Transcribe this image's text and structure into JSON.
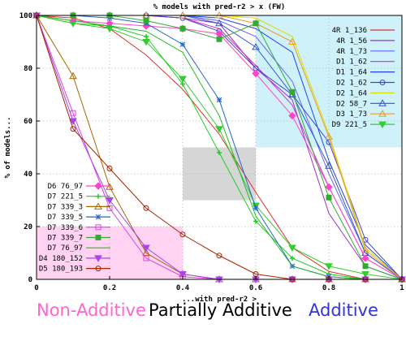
{
  "chart_data": {
    "type": "line",
    "title": "% models with pred-r2 > x (FW)",
    "xlabel": "...with pred-r2 >",
    "ylabel": "% of models...",
    "xlim": [
      0,
      1
    ],
    "ylim": [
      0,
      100
    ],
    "xticks": [
      "0",
      "0.2",
      "0.4",
      "0.6",
      "0.8",
      "1"
    ],
    "yticks": [
      "0",
      "20",
      "40",
      "60",
      "80",
      "100"
    ],
    "grid": true,
    "x": [
      0,
      0.1,
      0.2,
      0.3,
      0.4,
      0.5,
      0.6,
      0.7,
      0.8,
      0.9,
      1.0
    ],
    "regions": [
      {
        "label": "Non-Additive",
        "color": "#ff66cc",
        "x": [
          0,
          0.4
        ],
        "y": [
          0,
          20
        ],
        "fill": "#ffc8ee"
      },
      {
        "label": "Partially Additive",
        "color": "#000000",
        "x": [
          0.4,
          0.6
        ],
        "y": [
          30,
          50
        ],
        "fill": "#cccccc"
      },
      {
        "label": "Additive",
        "color": "#3333dd",
        "x": [
          0.6,
          1.0
        ],
        "y": [
          50,
          100
        ],
        "fill": "#c2eef9"
      }
    ],
    "series": [
      {
        "name": "4R 1_136",
        "color": "#e03030",
        "marker": "none",
        "values": [
          100,
          99,
          95,
          85,
          72,
          55,
          33,
          12,
          3,
          0,
          0
        ]
      },
      {
        "name": "4R 1_56",
        "color": "#9933cc",
        "marker": "none",
        "values": [
          100,
          100,
          100,
          100,
          99,
          97,
          80,
          68,
          25,
          5,
          0
        ]
      },
      {
        "name": "4R 1_73",
        "color": "#6666ff",
        "marker": "none",
        "values": [
          100,
          100,
          100,
          100,
          100,
          98,
          92,
          75,
          40,
          10,
          0
        ]
      },
      {
        "name": "D1 1_62",
        "color": "#cc33cc",
        "marker": "none",
        "values": [
          100,
          100,
          100,
          100,
          99,
          95,
          81,
          66,
          35,
          8,
          0
        ]
      },
      {
        "name": "D1 1_64",
        "color": "#2244ee",
        "marker": "none",
        "values": [
          100,
          100,
          100,
          100,
          100,
          99,
          95,
          86,
          45,
          13,
          0
        ]
      },
      {
        "name": "D2 1_62",
        "color": "#4444cc",
        "marker": "circle",
        "values": [
          100,
          100,
          100,
          100,
          99,
          94,
          80,
          70,
          52,
          15,
          0
        ]
      },
      {
        "name": "D2 1_64",
        "color": "#dddd00",
        "marker": "none",
        "values": [
          100,
          100,
          100,
          100,
          100,
          100,
          99,
          92,
          55,
          12,
          0
        ]
      },
      {
        "name": "D2 58_7",
        "color": "#3355cc",
        "marker": "triangle-up",
        "values": [
          100,
          100,
          100,
          100,
          100,
          97,
          88,
          70,
          43,
          10,
          0
        ]
      },
      {
        "name": "D3 1_73",
        "color": "#ee9922",
        "marker": "triangle-up",
        "values": [
          100,
          100,
          100,
          100,
          100,
          100,
          97,
          90,
          54,
          11,
          0
        ]
      },
      {
        "name": "D9 221_5",
        "color": "#33cc33",
        "marker": "triangle-down",
        "values": [
          100,
          97,
          95,
          90,
          76,
          57,
          28,
          12,
          5,
          2,
          0
        ]
      },
      {
        "name": "D6 76_97",
        "color": "#ff44cc",
        "marker": "diamond",
        "values": [
          100,
          98,
          97,
          96,
          95,
          93,
          78,
          62,
          35,
          8,
          0
        ]
      },
      {
        "name": "D7 221_5",
        "color": "#22cc22",
        "marker": "plus",
        "values": [
          100,
          97,
          96,
          92,
          74,
          48,
          22,
          8,
          2,
          0,
          0
        ]
      },
      {
        "name": "D7 339_3",
        "color": "#aa6600",
        "marker": "triangle-up",
        "values": [
          100,
          77,
          35,
          10,
          2,
          0,
          0,
          0,
          0,
          0,
          0
        ]
      },
      {
        "name": "D7 339_5",
        "color": "#2266cc",
        "marker": "asterisk",
        "values": [
          100,
          100,
          99,
          97,
          89,
          68,
          27,
          5,
          1,
          0,
          0
        ]
      },
      {
        "name": "D7 339_6",
        "color": "#dd44dd",
        "marker": "square-open",
        "values": [
          100,
          63,
          27,
          8,
          1,
          0,
          0,
          0,
          0,
          0,
          0
        ]
      },
      {
        "name": "D7 339_7",
        "color": "#33aa33",
        "marker": "square",
        "values": [
          100,
          100,
          100,
          98,
          95,
          91,
          97,
          71,
          31,
          5,
          0
        ]
      },
      {
        "name": "D7 76_97",
        "color": "#22bb22",
        "marker": "none",
        "values": [
          100,
          98,
          96,
          94,
          86,
          62,
          24,
          5,
          1,
          0,
          0
        ]
      },
      {
        "name": "D4 180_152",
        "color": "#aa44ee",
        "marker": "triangle-down",
        "values": [
          100,
          60,
          30,
          12,
          2,
          0,
          0,
          0,
          0,
          0,
          0
        ]
      },
      {
        "name": "D5 180_193",
        "color": "#aa2200",
        "marker": "circle",
        "values": [
          100,
          57,
          42,
          27,
          17,
          9,
          2,
          0,
          0,
          0,
          0
        ]
      }
    ]
  }
}
